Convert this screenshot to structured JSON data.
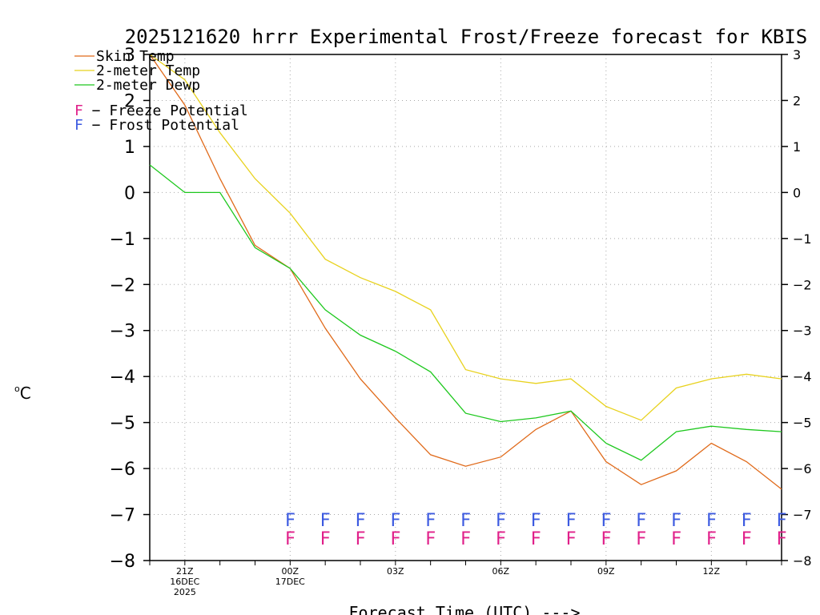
{
  "chart_data": {
    "type": "line",
    "title": "2025121620 hrrr Experimental Frost/Freeze forecast for KBIS",
    "ylabel_sup": "o",
    "ylabel_main": "C",
    "xlabel": "Forecast Time (UTC) --->",
    "ylim": [
      -8,
      3
    ],
    "yticks": [
      "3",
      "2",
      "1",
      "0",
      "−1",
      "−2",
      "−3",
      "−4",
      "−5",
      "−6",
      "−7",
      "−8"
    ],
    "ytick_values": [
      3,
      2,
      1,
      0,
      -1,
      -2,
      -3,
      -4,
      -5,
      -6,
      -7,
      -8
    ],
    "x": [
      20,
      21,
      22,
      23,
      24,
      25,
      26,
      27,
      28,
      29,
      30,
      31,
      32,
      33,
      34,
      35,
      36,
      37,
      38
    ],
    "xlim": [
      20,
      38
    ],
    "xticks": [
      {
        "x": 21,
        "lines": [
          "21Z",
          "16DEC",
          "2025"
        ]
      },
      {
        "x": 24,
        "lines": [
          "00Z",
          "17DEC"
        ]
      },
      {
        "x": 27,
        "lines": [
          "03Z"
        ]
      },
      {
        "x": 30,
        "lines": [
          "06Z"
        ]
      },
      {
        "x": 33,
        "lines": [
          "09Z"
        ]
      },
      {
        "x": 36,
        "lines": [
          "12Z"
        ]
      }
    ],
    "series": [
      {
        "name": "Skin Temp",
        "color": "#e06a1a",
        "values": [
          3.0,
          1.9,
          0.3,
          -1.15,
          -1.65,
          -2.95,
          -4.05,
          -4.9,
          -5.7,
          -5.95,
          -5.75,
          -5.15,
          -4.75,
          -5.85,
          -6.35,
          -6.05,
          -5.45,
          -5.85,
          -6.45
        ]
      },
      {
        "name": "2-meter Temp",
        "color": "#e8d21e",
        "values": [
          3.0,
          2.45,
          1.3,
          0.3,
          -0.45,
          -1.45,
          -1.85,
          -2.15,
          -2.55,
          -3.85,
          -4.05,
          -4.15,
          -4.05,
          -4.65,
          -4.95,
          -4.25,
          -4.05,
          -3.95,
          -4.05
        ]
      },
      {
        "name": "2-meter Dewp",
        "color": "#1ec81e",
        "values": [
          0.6,
          0.0,
          0.0,
          -1.2,
          -1.65,
          -2.55,
          -3.1,
          -3.45,
          -3.9,
          -4.8,
          -4.98,
          -4.9,
          -4.75,
          -5.45,
          -5.82,
          -5.2,
          -5.08,
          -5.15,
          -5.2
        ]
      }
    ],
    "potential_legend": [
      {
        "marker": "F",
        "text": " − Freeze Potential",
        "color": "#e0208a"
      },
      {
        "marker": "F",
        "text": " − Frost Potential",
        "color": "#3c5ae0"
      }
    ],
    "frost_marks": {
      "letter": "F",
      "color": "#3c5ae0",
      "x": [
        24,
        25,
        26,
        27,
        28,
        29,
        30,
        31,
        32,
        33,
        34,
        35,
        36,
        37,
        38
      ]
    },
    "freeze_marks": {
      "letter": "F",
      "color": "#e0208a",
      "x": [
        24,
        25,
        26,
        27,
        28,
        29,
        30,
        31,
        32,
        33,
        34,
        35,
        36,
        37,
        38
      ]
    }
  }
}
